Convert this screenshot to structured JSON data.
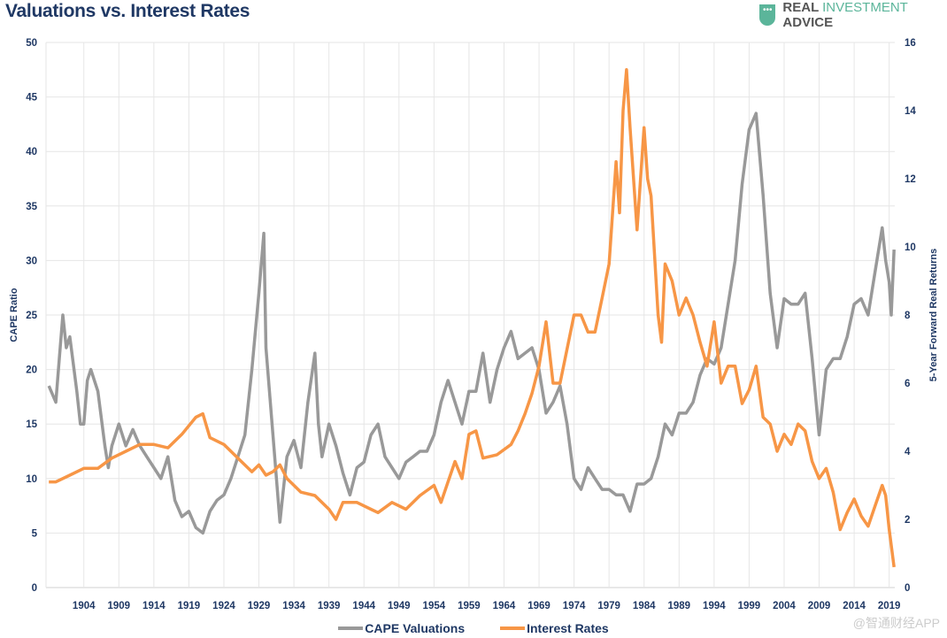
{
  "chart_data": {
    "type": "line",
    "title": "Valuations vs. Interest Rates",
    "ylabel": "CAPE Ratio",
    "y2label": "5-Year Forward Real Returns",
    "ylim": [
      0,
      50
    ],
    "y2lim": [
      0,
      16
    ],
    "yticks": [
      0,
      5,
      10,
      15,
      20,
      25,
      30,
      35,
      40,
      45,
      50
    ],
    "y2ticks": [
      0,
      2,
      4,
      6,
      8,
      10,
      12,
      14,
      16
    ],
    "xticks": [
      1904,
      1909,
      1914,
      1919,
      1924,
      1929,
      1934,
      1939,
      1944,
      1949,
      1954,
      1959,
      1964,
      1969,
      1974,
      1979,
      1984,
      1989,
      1994,
      1999,
      2004,
      2009,
      2014,
      2019
    ],
    "xlim": [
      1898.6,
      2019.8
    ],
    "grid": true,
    "legend_position": "bottom",
    "series": [
      {
        "name": "CAPE Valuations",
        "axis": "left",
        "color": "#999999",
        "x": [
          1899,
          1900,
          1900.5,
          1901,
          1901.5,
          1902,
          1903,
          1903.5,
          1904,
          1904.5,
          1905,
          1906,
          1907,
          1907.5,
          1908,
          1909,
          1910,
          1911,
          1912,
          1913,
          1914,
          1915,
          1916,
          1917,
          1918,
          1919,
          1920,
          1921,
          1922,
          1923,
          1924,
          1925,
          1926,
          1927,
          1928,
          1929,
          1929.7,
          1930,
          1931,
          1932,
          1932.5,
          1933,
          1934,
          1935,
          1936,
          1937,
          1937.5,
          1938,
          1939,
          1940,
          1941,
          1942,
          1943,
          1944,
          1945,
          1946,
          1947,
          1948,
          1949,
          1950,
          1951,
          1952,
          1953,
          1954,
          1955,
          1956,
          1957,
          1958,
          1959,
          1960,
          1961,
          1962,
          1963,
          1964,
          1965,
          1966,
          1967,
          1968,
          1969,
          1970,
          1971,
          1972,
          1973,
          1974,
          1975,
          1976,
          1977,
          1978,
          1979,
          1980,
          1981,
          1982,
          1983,
          1984,
          1985,
          1986,
          1987,
          1988,
          1989,
          1990,
          1991,
          1992,
          1993,
          1994,
          1995,
          1996,
          1997,
          1998,
          1999,
          2000,
          2001,
          2002,
          2003,
          2004,
          2005,
          2006,
          2007,
          2008,
          2009,
          2010,
          2011,
          2012,
          2013,
          2014,
          2015,
          2016,
          2017,
          2018,
          2018.5,
          2019,
          2019.3,
          2019.7
        ],
        "values": [
          18.5,
          17,
          21,
          25,
          22,
          23,
          18,
          15,
          15,
          19,
          20,
          18,
          13,
          11,
          13,
          15,
          13,
          14.5,
          13,
          12,
          11,
          10,
          12,
          8,
          6.5,
          7,
          5.5,
          5,
          7,
          8,
          8.5,
          10,
          12,
          14,
          20,
          27,
          32.5,
          22,
          14,
          6,
          9,
          12,
          13.5,
          11,
          17,
          21.5,
          15,
          12,
          15,
          13,
          10.5,
          8.5,
          11,
          11.5,
          14,
          15,
          12,
          11,
          10,
          11.5,
          12,
          12.5,
          12.5,
          14,
          17,
          19,
          17,
          15,
          18,
          18,
          21.5,
          17,
          20,
          22,
          23.5,
          21,
          21.5,
          22,
          20,
          16,
          17,
          18.5,
          15,
          10,
          9,
          11,
          10,
          9,
          9,
          8.5,
          8.5,
          7,
          9.5,
          9.5,
          10,
          12,
          15,
          14,
          16,
          16,
          17,
          19.5,
          21,
          20.5,
          22,
          26,
          30,
          37,
          42,
          43.5,
          36,
          27,
          22,
          26.5,
          26,
          26,
          27,
          21,
          14,
          20,
          21,
          21,
          23,
          26,
          26.5,
          25,
          29,
          33,
          30,
          28,
          25,
          31
        ]
      },
      {
        "name": "Interest Rates",
        "axis": "right",
        "color": "#f79646",
        "x": [
          1899,
          1900,
          1902,
          1904,
          1906,
          1908,
          1910,
          1912,
          1914,
          1916,
          1918,
          1920,
          1921,
          1922,
          1924,
          1926,
          1928,
          1929,
          1930,
          1931,
          1932,
          1933,
          1935,
          1937,
          1939,
          1940,
          1941,
          1943,
          1945,
          1946,
          1948,
          1950,
          1952,
          1954,
          1955,
          1956,
          1957,
          1958,
          1959,
          1960,
          1961,
          1963,
          1965,
          1966,
          1967,
          1968,
          1969,
          1970,
          1971,
          1972,
          1973,
          1974,
          1975,
          1976,
          1977,
          1978,
          1979,
          1980,
          1980.5,
          1981,
          1981.5,
          1982,
          1983,
          1984,
          1984.5,
          1985,
          1986,
          1986.5,
          1987,
          1988,
          1989,
          1990,
          1991,
          1992,
          1993,
          1994,
          1995,
          1996,
          1997,
          1998,
          1999,
          2000,
          2001,
          2002,
          2003,
          2004,
          2005,
          2006,
          2007,
          2008,
          2009,
          2010,
          2011,
          2012,
          2013,
          2014,
          2015,
          2016,
          2017,
          2018,
          2018.5,
          2019,
          2019.7
        ],
        "values": [
          3.1,
          3.1,
          3.3,
          3.5,
          3.5,
          3.8,
          4.0,
          4.2,
          4.2,
          4.1,
          4.5,
          5.0,
          5.1,
          4.4,
          4.2,
          3.8,
          3.4,
          3.6,
          3.3,
          3.4,
          3.6,
          3.2,
          2.8,
          2.7,
          2.3,
          2.0,
          2.5,
          2.5,
          2.3,
          2.2,
          2.5,
          2.3,
          2.7,
          3.0,
          2.5,
          3.1,
          3.7,
          3.2,
          4.5,
          4.6,
          3.8,
          3.9,
          4.2,
          4.6,
          5.1,
          5.7,
          6.5,
          7.8,
          6.0,
          6.0,
          7.0,
          8.0,
          8.0,
          7.5,
          7.5,
          8.5,
          9.5,
          12.5,
          11,
          14,
          15.2,
          13.5,
          10.5,
          13.5,
          12,
          11.5,
          8,
          7.2,
          9.5,
          9,
          8,
          8.5,
          8,
          7.2,
          6.5,
          7.8,
          6,
          6.5,
          6.5,
          5.4,
          5.8,
          6.5,
          5,
          4.8,
          4,
          4.5,
          4.2,
          4.8,
          4.6,
          3.7,
          3.2,
          3.5,
          2.8,
          1.7,
          2.2,
          2.6,
          2.1,
          1.8,
          2.4,
          3.0,
          2.7,
          1.7,
          0.6
        ]
      }
    ]
  },
  "header": {
    "title": "Valuations vs. Interest Rates",
    "logo_dots": "•••",
    "logo_a": "REAL ",
    "logo_b": "INVESTMENT",
    "logo_c": " ADVICE"
  },
  "legend": {
    "cape": "CAPE Valuations",
    "rates": "Interest Rates"
  },
  "watermark": "@智通财经APP"
}
